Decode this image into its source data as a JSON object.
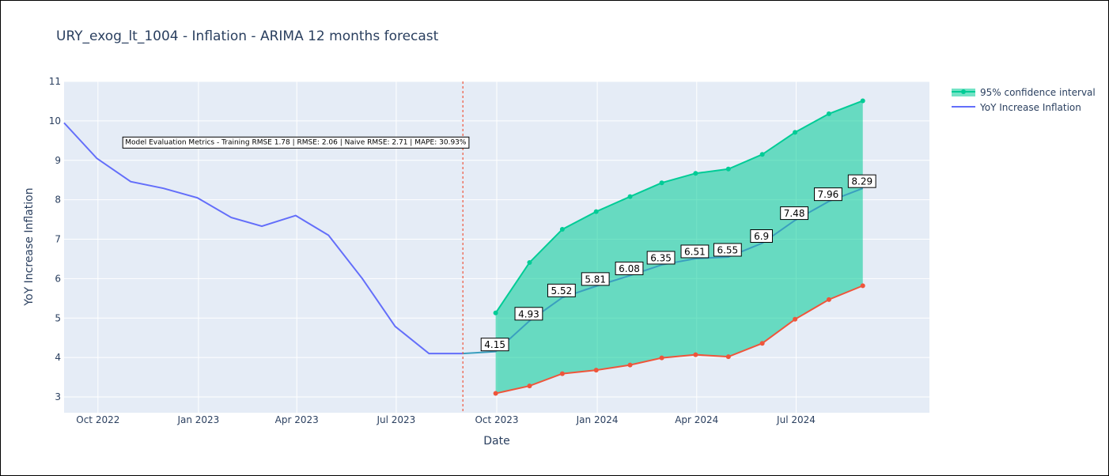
{
  "chart_data": {
    "type": "line",
    "title": "URY_exog_lt_1004 - Inflation - ARIMA 12 months forecast",
    "xlabel": "Date",
    "ylabel": "YoY Increase Inflation",
    "xlim": [
      "2022-08-31",
      "2024-10-31"
    ],
    "ylim": [
      2.6,
      11
    ],
    "y_ticks": [
      3,
      4,
      5,
      6,
      7,
      8,
      9,
      10,
      11
    ],
    "x_ticks": [
      {
        "date": "2022-10-01",
        "label": "Oct 2022"
      },
      {
        "date": "2023-01-01",
        "label": "Jan 2023"
      },
      {
        "date": "2023-04-01",
        "label": "Apr 2023"
      },
      {
        "date": "2023-07-01",
        "label": "Jul 2023"
      },
      {
        "date": "2023-10-01",
        "label": "Oct 2023"
      },
      {
        "date": "2024-01-01",
        "label": "Jan 2024"
      },
      {
        "date": "2024-04-01",
        "label": "Apr 2024"
      },
      {
        "date": "2024-07-01",
        "label": "Jul 2024"
      }
    ],
    "grid": true,
    "legend_position": "top-right",
    "colors": {
      "plot_background": "#e5ecf6",
      "grid": "#ffffff",
      "series_line": "#636efa",
      "upper_bound": "#00cc96",
      "lower_bound": "#ef553b",
      "confidence_fill": "#00cc96",
      "forecast_line": "#3a9fbf",
      "vertical_marker": "#ef553b"
    },
    "series": [
      {
        "name": "YoY Increase Inflation",
        "x": [
          "2022-08-31",
          "2022-09-30",
          "2022-10-31",
          "2022-11-30",
          "2022-12-31",
          "2023-01-31",
          "2023-02-28",
          "2023-03-31",
          "2023-04-30",
          "2023-05-31",
          "2023-06-30",
          "2023-07-31",
          "2023-08-31"
        ],
        "y": [
          9.95,
          9.05,
          8.46,
          8.29,
          8.05,
          7.55,
          7.33,
          7.6,
          7.1,
          6.0,
          4.79,
          4.1,
          4.1
        ]
      },
      {
        "name": "95% confidence interval",
        "x": [
          "2023-09-30",
          "2023-10-31",
          "2023-11-30",
          "2023-12-31",
          "2024-01-31",
          "2024-02-29",
          "2024-03-31",
          "2024-04-30",
          "2024-05-31",
          "2024-06-30",
          "2024-07-31",
          "2024-08-31"
        ],
        "upper": [
          5.13,
          6.41,
          7.25,
          7.7,
          8.08,
          8.43,
          8.67,
          8.78,
          9.15,
          9.71,
          10.18,
          10.51
        ],
        "lower": [
          3.09,
          3.28,
          3.59,
          3.68,
          3.81,
          3.99,
          4.07,
          4.02,
          4.36,
          4.97,
          5.47,
          5.82
        ]
      },
      {
        "x": [
          "2023-08-31",
          "2023-09-30",
          "2023-10-31",
          "2023-11-30",
          "2023-12-31",
          "2024-01-31",
          "2024-02-29",
          "2024-03-31",
          "2024-04-30",
          "2024-05-31",
          "2024-06-30",
          "2024-07-31",
          "2024-08-31"
        ],
        "y": [
          4.1,
          4.15,
          4.93,
          5.52,
          5.81,
          6.08,
          6.35,
          6.51,
          6.55,
          6.9,
          7.48,
          7.96,
          8.29
        ],
        "labels": [
          "",
          "4.15",
          "4.93",
          "5.52",
          "5.81",
          "6.08",
          "6.35",
          "6.51",
          "6.55",
          "6.9",
          "7.48",
          "7.96",
          "8.29"
        ]
      }
    ],
    "vertical_marker_date": "2023-08-31",
    "annotation": {
      "text": "Model Evaluation Metrics - Training RMSE 1.78 | RMSE: 2.06 | Naive RMSE: 2.71 | MAPE: 30.93%",
      "x": "2023-03-31",
      "y": 9.47
    },
    "legend": [
      {
        "label": "95% confidence interval"
      },
      {
        "label": "YoY Increase Inflation"
      }
    ]
  }
}
